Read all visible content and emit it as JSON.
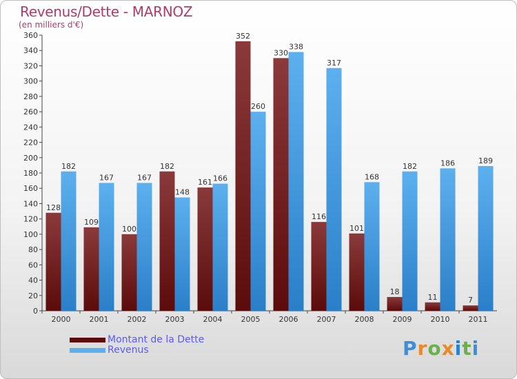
{
  "title": "Revenus/Dette - MARNOZ",
  "subtitle": "(en milliers d'€)",
  "logo": "Proxiti",
  "colors": {
    "debt_dark": "#5c0b0b",
    "debt_light": "#8a3a3a",
    "revenue_dark": "#2a7fc8",
    "revenue_light": "#5db0ee",
    "title": "#b23a6b",
    "legend_text": "#5a5aff"
  },
  "chart_data": {
    "type": "bar",
    "title": "Revenus/Dette - MARNOZ",
    "subtitle": "(en milliers d'€)",
    "categories": [
      "2000",
      "2001",
      "2002",
      "2003",
      "2004",
      "2005",
      "2006",
      "2007",
      "2008",
      "2009",
      "2010",
      "2011"
    ],
    "series": [
      {
        "name": "Montant de la Dette",
        "values": [
          128,
          109,
          100,
          182,
          161,
          352,
          330,
          116,
          101,
          18,
          11,
          7
        ]
      },
      {
        "name": "Revenus",
        "values": [
          182,
          167,
          167,
          148,
          166,
          260,
          338,
          317,
          168,
          182,
          186,
          189
        ]
      }
    ],
    "ylim": [
      0,
      360
    ],
    "yticks": [
      0,
      20,
      40,
      60,
      80,
      100,
      120,
      140,
      160,
      180,
      200,
      220,
      240,
      260,
      280,
      300,
      320,
      340,
      360
    ],
    "grid": false,
    "legend_position": "bottom-left"
  }
}
